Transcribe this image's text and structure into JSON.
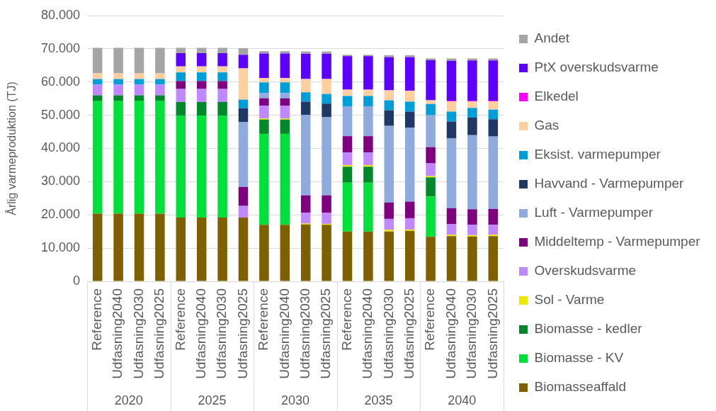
{
  "chart_data": {
    "type": "bar",
    "stacked": true,
    "ylabel": "Årlig varmeproduktion (TJ)",
    "categories": [
      "Reference",
      "Udfasning2040",
      "Udfasning2030",
      "Udfasning2025",
      "Reference",
      "Udfasning2040",
      "Udfasning2030",
      "Udfasning2025",
      "Reference",
      "Udfasning2040",
      "Udfasning2030",
      "Udfasning2025",
      "Reference",
      "Udfasning2040",
      "Udfasning2030",
      "Udfasning2025",
      "Reference",
      "Udfasning2040",
      "Udfasning2030",
      "Udfasning2025"
    ],
    "annotations": [
      "2020",
      "2025",
      "2030",
      "2035",
      "2040"
    ],
    "ylim": [
      0,
      80000
    ],
    "yticks": [
      0,
      {
        "value": 10000,
        "label": "10.000"
      },
      {
        "value": 20000,
        "label": "20.000"
      },
      {
        "value": 30000,
        "label": "30.000"
      },
      {
        "value": 40000,
        "label": "40.000"
      },
      {
        "value": 50000,
        "label": "50.000"
      },
      {
        "value": 60000,
        "label": "60.000"
      },
      {
        "value": 70000,
        "label": "70.000"
      },
      {
        "value": 80000,
        "label": "80.000"
      }
    ],
    "grid": "y",
    "legend": "right",
    "series": [
      {
        "name": "Biomasseaffald",
        "color": "#7f6000",
        "values": [
          20400,
          20400,
          20400,
          20400,
          19200,
          19200,
          19200,
          19200,
          17000,
          17000,
          17100,
          17000,
          15000,
          15000,
          15000,
          15200,
          13400,
          13600,
          13500,
          13600
        ]
      },
      {
        "name": "Biomasse - KV",
        "color": "#00e03a",
        "values": [
          34000,
          34000,
          34000,
          34000,
          30700,
          30700,
          30700,
          0,
          27400,
          27400,
          0,
          0,
          14700,
          14700,
          0,
          0,
          12100,
          0,
          0,
          0
        ]
      },
      {
        "name": "Biomasse - kedler",
        "color": "#00882a",
        "values": [
          1600,
          1600,
          1600,
          1600,
          4100,
          4100,
          4100,
          0,
          4300,
          4300,
          0,
          0,
          4800,
          4800,
          0,
          0,
          5800,
          0,
          0,
          0
        ]
      },
      {
        "name": "Sol - Varme",
        "color": "#eee600",
        "values": [
          0,
          0,
          0,
          0,
          0,
          0,
          0,
          0,
          300,
          300,
          300,
          300,
          500,
          500,
          500,
          400,
          400,
          400,
          400,
          400
        ]
      },
      {
        "name": "Overskudsvarme",
        "color": "#c088ff",
        "values": [
          3200,
          3200,
          3200,
          3200,
          3900,
          3900,
          3900,
          3500,
          3900,
          3900,
          3300,
          3300,
          3800,
          3800,
          3300,
          3400,
          3800,
          3200,
          3100,
          3000
        ]
      },
      {
        "name": "Middeltemp - Varmepumper",
        "color": "#7f007f",
        "values": [
          0,
          0,
          0,
          0,
          2400,
          2400,
          2400,
          5700,
          2200,
          2200,
          5200,
          5300,
          4900,
          4900,
          4900,
          5000,
          4900,
          4800,
          4700,
          4800
        ]
      },
      {
        "name": "Luft - Varmepumper",
        "color": "#8faadc",
        "values": [
          0,
          0,
          0,
          0,
          0,
          0,
          0,
          19600,
          1600,
          1600,
          24200,
          23500,
          9000,
          9000,
          23100,
          22300,
          9600,
          21100,
          22300,
          21800
        ]
      },
      {
        "name": "Havvand - Varmepumper",
        "color": "#203864",
        "values": [
          0,
          0,
          0,
          0,
          0,
          0,
          0,
          4100,
          0,
          0,
          4000,
          4100,
          0,
          0,
          4700,
          4800,
          0,
          5000,
          5300,
          5200
        ]
      },
      {
        "name": "Eksist. varmepumper",
        "color": "#009ed8",
        "values": [
          1700,
          1700,
          1700,
          1700,
          2600,
          2600,
          2600,
          2600,
          3200,
          3200,
          2800,
          2900,
          3100,
          3100,
          3000,
          3000,
          3400,
          3000,
          2900,
          2900
        ]
      },
      {
        "name": "Gas",
        "color": "#ffcfa0",
        "values": [
          1700,
          1700,
          1700,
          1700,
          1800,
          1800,
          1800,
          9400,
          1300,
          1300,
          4000,
          4500,
          1900,
          1900,
          3000,
          3300,
          1100,
          3100,
          2000,
          2500
        ]
      },
      {
        "name": "Elkedel",
        "color": "#ff00ff",
        "values": [
          0,
          0,
          0,
          0,
          0,
          0,
          0,
          0,
          0,
          0,
          0,
          0,
          0,
          0,
          0,
          0,
          0,
          200,
          200,
          200
        ]
      },
      {
        "name": "PtX overskudsvarme",
        "color": "#5c00ff",
        "values": [
          0,
          0,
          0,
          0,
          4000,
          4000,
          4000,
          4100,
          7400,
          7400,
          7600,
          7600,
          10100,
          10100,
          10000,
          10100,
          12100,
          12000,
          12100,
          12100
        ]
      },
      {
        "name": "Andet",
        "color": "#a5a5a5",
        "values": [
          7700,
          7700,
          7700,
          7700,
          1600,
          1600,
          1600,
          2000,
          700,
          700,
          700,
          700,
          400,
          400,
          600,
          600,
          500,
          700,
          600,
          600
        ]
      }
    ]
  }
}
